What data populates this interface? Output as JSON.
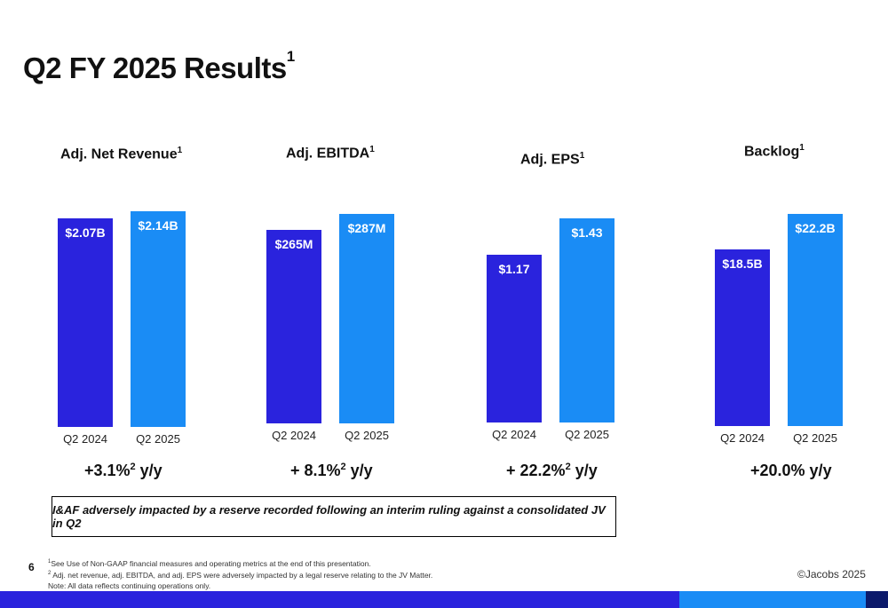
{
  "page": {
    "title": "Q2 FY 2025 Results",
    "title_sup": "1",
    "callout": "I&AF adversely impacted by a reserve recorded following an interim ruling against a consolidated JV in Q2",
    "page_number": "6",
    "footnotes": [
      {
        "sup": "1",
        "text": "See Use of Non-GAAP financial measures and operating metrics at the end of this presentation."
      },
      {
        "sup": "2",
        "text": " Adj. net revenue, adj. EBITDA, and adj. EPS were adversely impacted by a legal reserve relating to the JV Matter."
      },
      {
        "sup": "",
        "text": "Note: All data reflects continuing operations only."
      }
    ],
    "copyright": "©Jacobs 2025"
  },
  "colors": {
    "prior": "#2a23dd",
    "current": "#1a8cf5",
    "footer_dark": "#2a23dd",
    "footer_light": "#1a8cf5",
    "footer_navy": "#0c1a6b"
  },
  "chart_data": [
    {
      "type": "bar",
      "title": "Adj. Net Revenue",
      "title_sup": "1",
      "categories": [
        "Q2 2024",
        "Q2 2025"
      ],
      "values": [
        2.07,
        2.14
      ],
      "value_labels": [
        "$2.07B",
        "$2.14B"
      ],
      "unit": "$B",
      "growth": {
        "prefix": "+3.1%",
        "sup": "2",
        "suffix": " y/y"
      }
    },
    {
      "type": "bar",
      "title": "Adj. EBITDA",
      "title_sup": "1",
      "categories": [
        "Q2 2024",
        "Q2 2025"
      ],
      "values": [
        265,
        287
      ],
      "value_labels": [
        "$265M",
        "$287M"
      ],
      "unit": "$M",
      "growth": {
        "prefix": "+ 8.1%",
        "sup": "2",
        "suffix": " y/y"
      }
    },
    {
      "type": "bar",
      "title": "Adj. EPS",
      "title_sup": "1",
      "categories": [
        "Q2 2024",
        "Q2 2025"
      ],
      "values": [
        1.17,
        1.43
      ],
      "value_labels": [
        "$1.17",
        "$1.43"
      ],
      "unit": "$",
      "growth": {
        "prefix": "+ 22.2%",
        "sup": "2",
        "suffix": " y/y"
      }
    },
    {
      "type": "bar",
      "title": "Backlog",
      "title_sup": "1",
      "categories": [
        "Q2 2024",
        "Q2 2025"
      ],
      "values": [
        18.5,
        22.2
      ],
      "value_labels": [
        "$18.5B",
        "$22.2B"
      ],
      "unit": "$B",
      "growth": {
        "prefix": "+20.0% y/y",
        "sup": "",
        "suffix": ""
      }
    }
  ]
}
